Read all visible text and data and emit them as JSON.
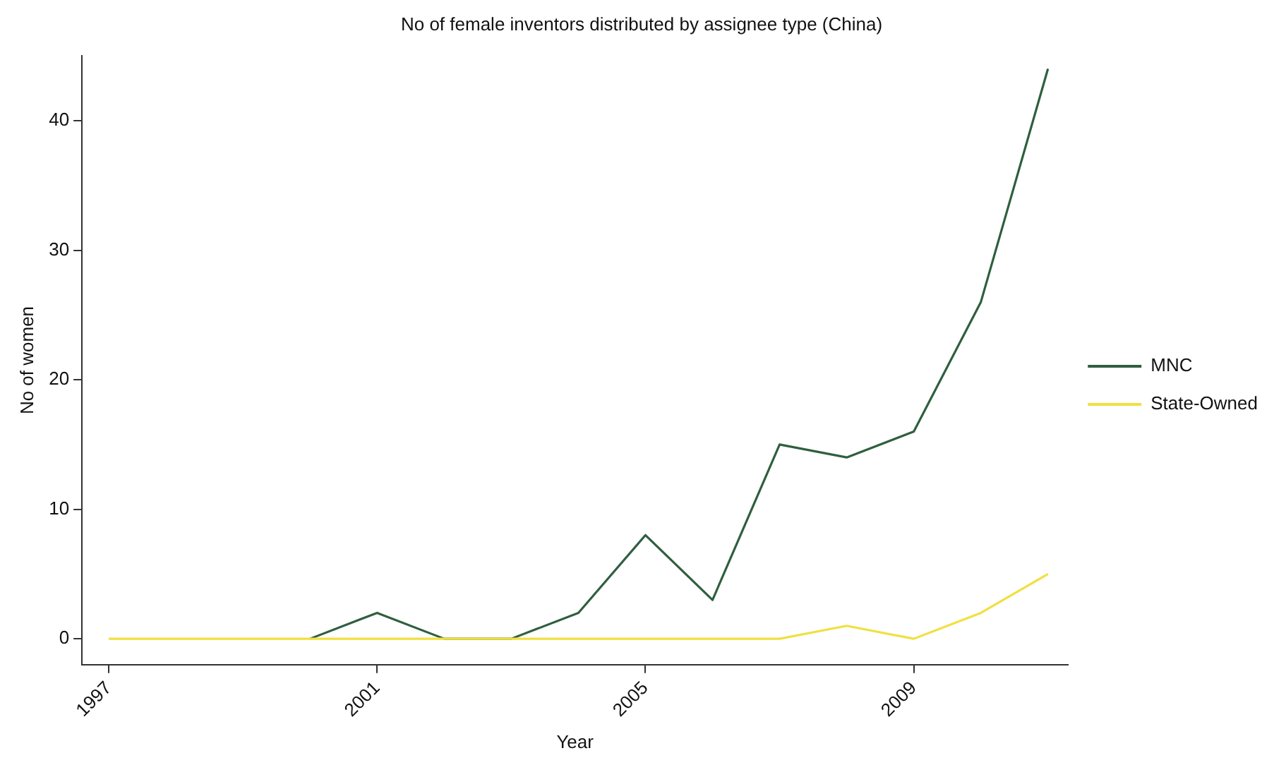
{
  "chart_data": {
    "type": "line",
    "title": "No of female inventors distributed by assignee type (China)",
    "xlabel": "Year",
    "ylabel": "No of women",
    "x": [
      1997,
      1998,
      1999,
      2000,
      2001,
      2002,
      2003,
      2004,
      2005,
      2006,
      2007,
      2008,
      2009,
      2010,
      2011
    ],
    "series": [
      {
        "name": "MNC",
        "color": "#2f5f3f",
        "values": [
          null,
          null,
          null,
          0,
          2,
          0,
          0,
          2,
          8,
          3,
          15,
          14,
          16,
          26,
          44
        ]
      },
      {
        "name": "State-Owned",
        "color": "#f0e040",
        "values": [
          0,
          0,
          0,
          0,
          0,
          0,
          0,
          0,
          0,
          0,
          0,
          1,
          0,
          2,
          5
        ]
      }
    ],
    "xlim": [
      1996.6,
      2011.3
    ],
    "xticks": [
      1997,
      2001,
      2005,
      2009
    ],
    "ylim": [
      -2,
      45
    ],
    "yticks": [
      0,
      10,
      20,
      30,
      40
    ],
    "grid": false,
    "legend": "right",
    "marker": "none",
    "line_style": "solid"
  }
}
